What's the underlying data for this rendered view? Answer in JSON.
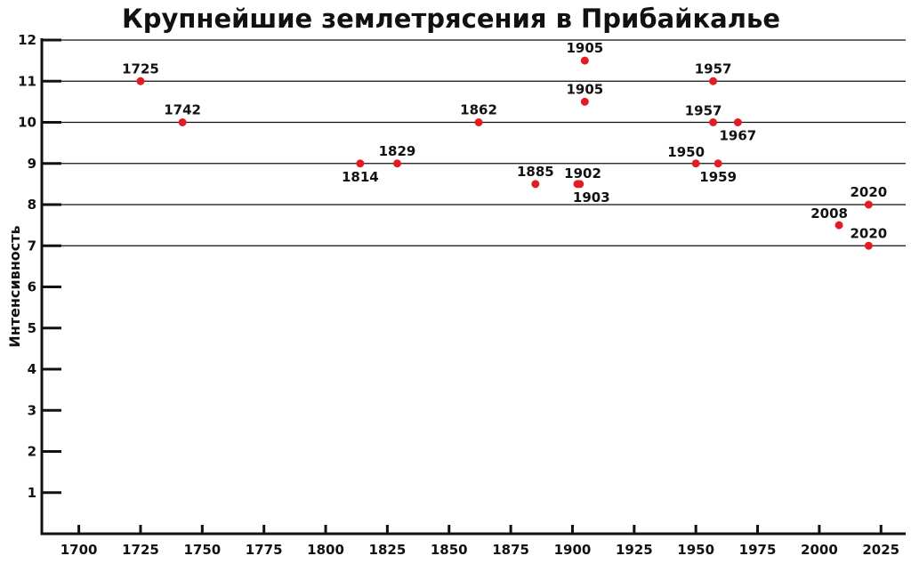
{
  "chart_data": {
    "type": "scatter",
    "title": "Крупнейшие землетрясения в Прибайкалье",
    "xlabel": "",
    "ylabel": "Интенсивность",
    "xlim": [
      1685,
      2035
    ],
    "ylim": [
      0,
      12
    ],
    "x_ticks": [
      1700,
      1725,
      1750,
      1775,
      1800,
      1825,
      1850,
      1875,
      1900,
      1925,
      1950,
      1975,
      2000,
      2025
    ],
    "y_ticks": [
      1,
      2,
      3,
      4,
      5,
      6,
      7,
      8,
      9,
      10,
      11,
      12
    ],
    "gridlines_y": [
      7,
      8,
      9,
      10,
      11,
      12
    ],
    "legend": "none",
    "point_color": "#e21c23",
    "points": [
      {
        "x": 1725,
        "y": 11,
        "label": "1725",
        "label_pos": "above"
      },
      {
        "x": 1742,
        "y": 10,
        "label": "1742",
        "label_pos": "above"
      },
      {
        "x": 1814,
        "y": 9,
        "label": "1814",
        "label_pos": "below"
      },
      {
        "x": 1829,
        "y": 9,
        "label": "1829",
        "label_pos": "above"
      },
      {
        "x": 1862,
        "y": 10,
        "label": "1862",
        "label_pos": "above"
      },
      {
        "x": 1885,
        "y": 8.5,
        "label": "1885",
        "label_pos": "above"
      },
      {
        "x": 1902,
        "y": 8.5,
        "label": "1902",
        "label_pos": "above-right"
      },
      {
        "x": 1903,
        "y": 8.5,
        "label": "1903",
        "label_pos": "below-right"
      },
      {
        "x": 1905,
        "y": 11.5,
        "label": "1905",
        "label_pos": "above"
      },
      {
        "x": 1905,
        "y": 10.5,
        "label": "1905",
        "label_pos": "above"
      },
      {
        "x": 1950,
        "y": 9,
        "label": "1950",
        "label_pos": "above-left"
      },
      {
        "x": 1957,
        "y": 11,
        "label": "1957",
        "label_pos": "above"
      },
      {
        "x": 1957,
        "y": 10,
        "label": "1957",
        "label_pos": "above-left"
      },
      {
        "x": 1959,
        "y": 9,
        "label": "1959",
        "label_pos": "below"
      },
      {
        "x": 1967,
        "y": 10,
        "label": "1967",
        "label_pos": "below"
      },
      {
        "x": 2008,
        "y": 7.5,
        "label": "2008",
        "label_pos": "above-left"
      },
      {
        "x": 2020,
        "y": 8,
        "label": "2020",
        "label_pos": "above"
      },
      {
        "x": 2020,
        "y": 7,
        "label": "2020",
        "label_pos": "above"
      }
    ]
  }
}
